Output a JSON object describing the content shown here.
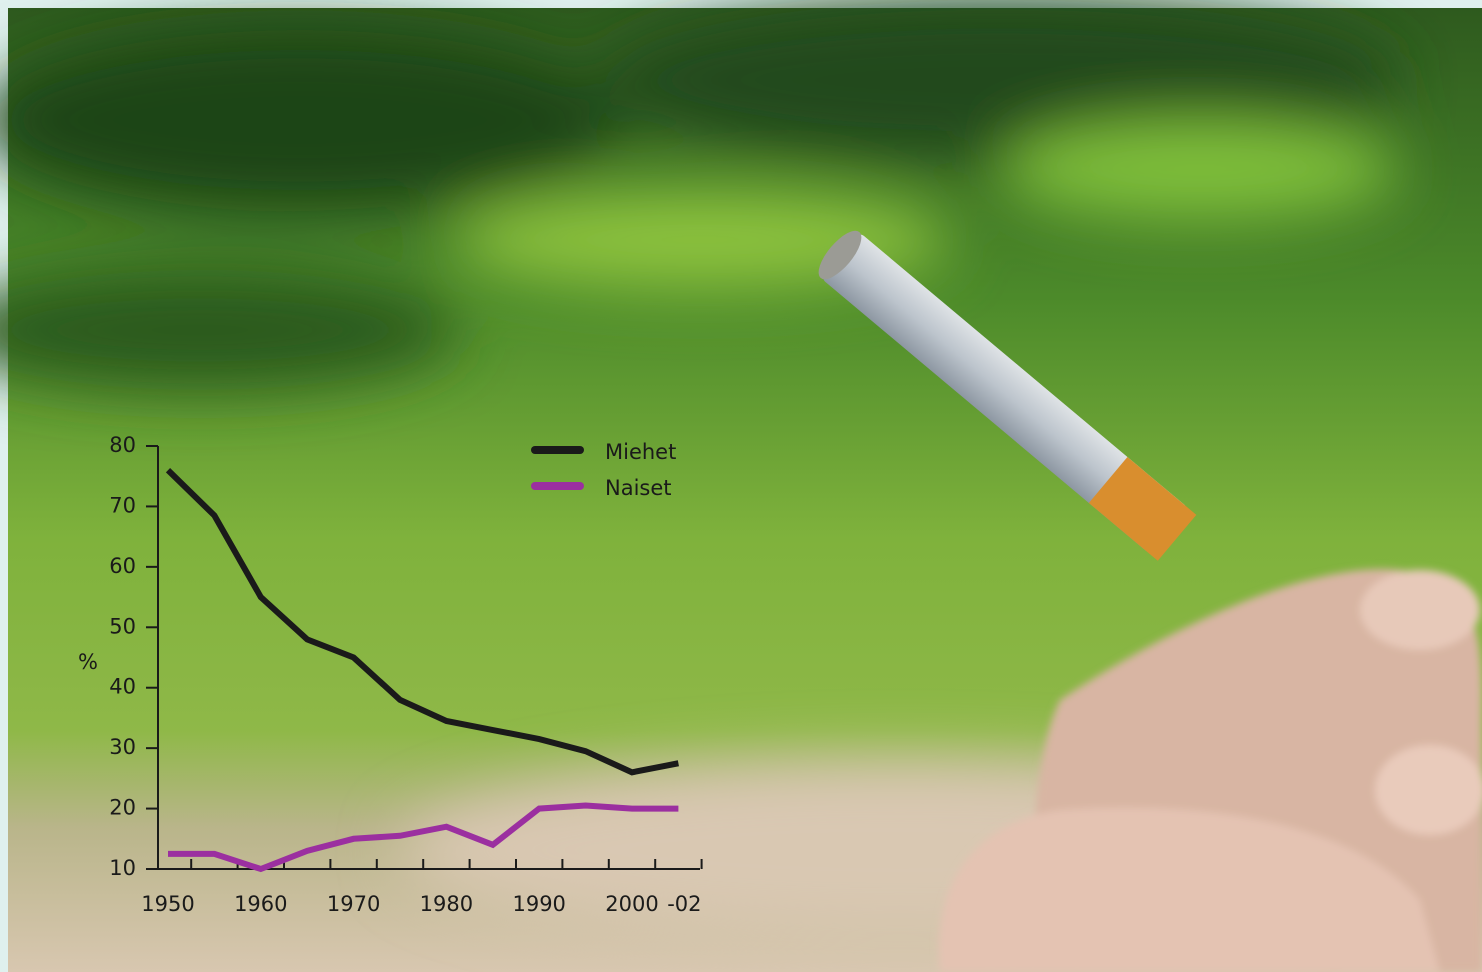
{
  "chart_data": {
    "type": "line",
    "categories": [
      "1950",
      null,
      "1960",
      null,
      "1970",
      null,
      "1980",
      null,
      "1990",
      null,
      "2000",
      "-02"
    ],
    "series": [
      {
        "name": "Miehet",
        "color": "#1a1a1a",
        "values": [
          76,
          68.5,
          55,
          48,
          45,
          38,
          34.5,
          33,
          31.5,
          29.5,
          26,
          27.5
        ]
      },
      {
        "name": "Naiset",
        "color": "#9b2fa0",
        "values": [
          12.5,
          12.5,
          10,
          13,
          15,
          15.5,
          17,
          14,
          20,
          20.5,
          20,
          20
        ]
      }
    ],
    "ylabel": "%",
    "ylim": [
      10,
      80
    ],
    "yticks": [
      10,
      20,
      30,
      40,
      50,
      60,
      70,
      80
    ],
    "legend": "top-right"
  }
}
